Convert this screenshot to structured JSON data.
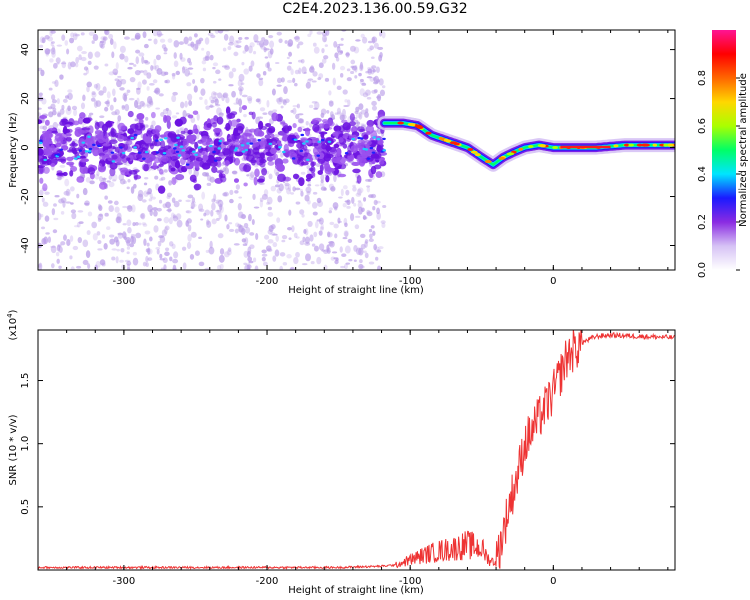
{
  "title": "C2E4.2023.136.00.59.G32",
  "chart_data": [
    {
      "type": "heatmap",
      "xlabel": "Height of straight line (km)",
      "ylabel": "Frequency (Hz)",
      "xlim": [
        -360,
        85
      ],
      "ylim": [
        -50,
        48
      ],
      "xticks": [
        -300,
        -200,
        -100,
        0
      ],
      "yticks": [
        -40,
        -20,
        0,
        20,
        40
      ],
      "colorbar": {
        "label": "Normalized spectral amplitude",
        "range": [
          0,
          1
        ],
        "ticks": [
          "0.0",
          "0.2",
          "0.4",
          "0.6",
          "0.8"
        ],
        "colors": [
          "#ffffff",
          "#d6c2f5",
          "#8a2be2",
          "#1a1aff",
          "#00e5ff",
          "#00ff66",
          "#aaff00",
          "#ffd700",
          "#ff6600",
          "#ff0000",
          "#ff1493"
        ]
      },
      "ridge": {
        "description_free": true,
        "x": [
          -118,
          -105,
          -95,
          -85,
          -70,
          -60,
          -50,
          -42,
          -35,
          -28,
          -20,
          -10,
          0,
          10,
          20,
          30,
          50,
          85
        ],
        "y": [
          10,
          10,
          9,
          5,
          2,
          0,
          -4,
          -7,
          -4,
          -2,
          0,
          1,
          0,
          0,
          0,
          0,
          1,
          1
        ]
      },
      "noise_region_x": [
        -360,
        -118
      ]
    },
    {
      "type": "line",
      "xlabel": "Height of straight line (km)",
      "ylabel": "SNR (10 * v/v)",
      "multiplier": "(x10",
      "multiplier_exp": "4",
      "multiplier_close": ")",
      "xlim": [
        -360,
        85
      ],
      "ylim": [
        0,
        1.9
      ],
      "xticks": [
        -300,
        -200,
        -100,
        0
      ],
      "yticks": [
        "0.5",
        "1.0",
        "1.5"
      ],
      "color": "#ee3333",
      "series": [
        {
          "x": [
            -360,
            -300,
            -250,
            -200,
            -150,
            -120,
            -110,
            -100,
            -90,
            -80,
            -70,
            -60,
            -50,
            -45,
            -40,
            -35,
            -30,
            -25,
            -20,
            -15,
            -10,
            -5,
            0,
            5,
            10,
            20,
            30,
            40,
            60,
            85
          ],
          "values": [
            0.02,
            0.02,
            0.02,
            0.02,
            0.02,
            0.03,
            0.04,
            0.08,
            0.12,
            0.15,
            0.17,
            0.2,
            0.17,
            0.08,
            0.06,
            0.3,
            0.55,
            0.75,
            1.0,
            1.1,
            1.2,
            1.3,
            1.4,
            1.55,
            1.7,
            1.8,
            1.85,
            1.86,
            1.85,
            1.84
          ]
        }
      ]
    }
  ]
}
